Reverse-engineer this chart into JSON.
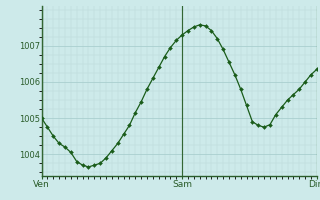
{
  "background_color": "#cdeaea",
  "grid_color_major": "#aacfcf",
  "grid_color_minor": "#bcd9d9",
  "line_color": "#1a5c1a",
  "marker_color": "#1a5c1a",
  "tick_label_color": "#2a5c2a",
  "border_color": "#2a5c2a",
  "ylim": [
    1003.4,
    1008.1
  ],
  "yticks": [
    1004,
    1005,
    1006,
    1007
  ],
  "xtick_positions": [
    0,
    24,
    47
  ],
  "xtick_labels": [
    "Ven",
    "Sam",
    "Dim"
  ],
  "xlim": [
    0,
    47
  ],
  "x_values": [
    0,
    1,
    2,
    3,
    4,
    5,
    6,
    7,
    8,
    9,
    10,
    11,
    12,
    13,
    14,
    15,
    16,
    17,
    18,
    19,
    20,
    21,
    22,
    23,
    24,
    25,
    26,
    27,
    28,
    29,
    30,
    31,
    32,
    33,
    34,
    35,
    36,
    37,
    38,
    39,
    40,
    41,
    42,
    43,
    44,
    45,
    46,
    47
  ],
  "y_values": [
    1005.0,
    1004.75,
    1004.5,
    1004.3,
    1004.2,
    1004.05,
    1003.8,
    1003.7,
    1003.65,
    1003.7,
    1003.75,
    1003.9,
    1004.1,
    1004.3,
    1004.55,
    1004.8,
    1005.15,
    1005.45,
    1005.8,
    1006.1,
    1006.4,
    1006.7,
    1006.95,
    1007.15,
    1007.3,
    1007.42,
    1007.52,
    1007.58,
    1007.55,
    1007.42,
    1007.2,
    1006.9,
    1006.55,
    1006.2,
    1005.8,
    1005.35,
    1004.9,
    1004.8,
    1004.75,
    1004.82,
    1005.1,
    1005.3,
    1005.5,
    1005.65,
    1005.8,
    1006.0,
    1006.2,
    1006.35
  ],
  "vline_positions": [
    0,
    24,
    47
  ],
  "vline_color": "#336633"
}
